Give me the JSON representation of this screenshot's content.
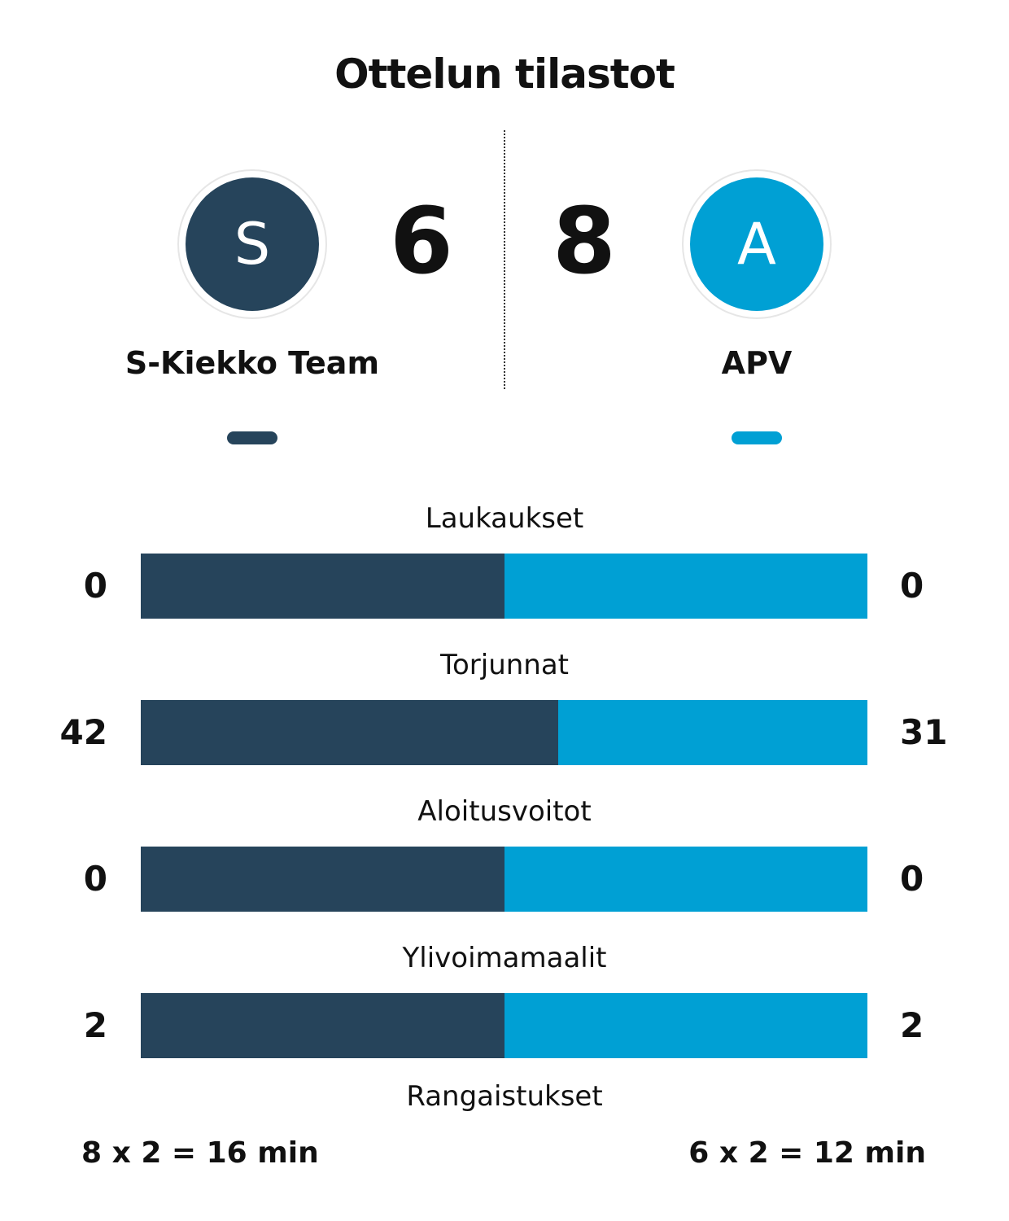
{
  "title": "Ottelun tilastot",
  "colors": {
    "home": "#26445b",
    "away": "#00a0d4"
  },
  "home": {
    "initial": "S",
    "name": "S-Kiekko Team",
    "score": "6"
  },
  "away": {
    "initial": "A",
    "name": "APV",
    "score": "8"
  },
  "stats": [
    {
      "label": "Laukaukset",
      "home": "0",
      "away": "0",
      "home_share": 0.5
    },
    {
      "label": "Torjunnat",
      "home": "42",
      "away": "31",
      "home_share": 0.575
    },
    {
      "label": "Aloitusvoitot",
      "home": "0",
      "away": "0",
      "home_share": 0.5
    },
    {
      "label": "Ylivoimamaalit",
      "home": "2",
      "away": "2",
      "home_share": 0.5
    }
  ],
  "penalties": {
    "label": "Rangaistukset",
    "home": "8 x 2 = 16 min",
    "away": "6 x 2 = 12 min"
  }
}
